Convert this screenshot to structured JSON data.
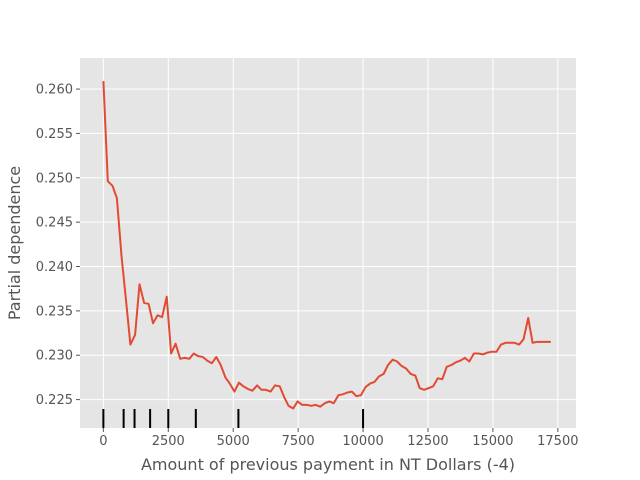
{
  "chart_data": {
    "type": "line",
    "title": "",
    "xlabel": "Amount of previous payment in NT Dollars (-4)",
    "ylabel": "Partial dependence",
    "xlim": [
      -900,
      18200
    ],
    "ylim": [
      0.2218,
      0.2635
    ],
    "grid": true,
    "xticks": [
      0,
      2500,
      5000,
      7500,
      10000,
      12500,
      15000,
      17500
    ],
    "xtick_labels": [
      "0",
      "2500",
      "5000",
      "7500",
      "10000",
      "12500",
      "15000",
      "17500"
    ],
    "yticks": [
      0.225,
      0.23,
      0.235,
      0.24,
      0.245,
      0.25,
      0.255,
      0.26
    ],
    "ytick_labels": [
      "0.225",
      "0.230",
      "0.235",
      "0.240",
      "0.245",
      "0.250",
      "0.255",
      "0.260"
    ],
    "series": [
      {
        "color": "#E24A33",
        "x": [
          0,
          170,
          350,
          520,
          700,
          870,
          1040,
          1220,
          1390,
          1570,
          1740,
          1910,
          2090,
          2260,
          2440,
          2610,
          2780,
          2960,
          3130,
          3310,
          3480,
          3650,
          3830,
          4000,
          4180,
          4350,
          4520,
          4700,
          4870,
          5050,
          5220,
          5390,
          5570,
          5740,
          5920,
          6090,
          6260,
          6440,
          6610,
          6790,
          6960,
          7130,
          7310,
          7480,
          7660,
          7830,
          8000,
          8180,
          8350,
          8530,
          8700,
          8870,
          9050,
          9220,
          9400,
          9570,
          9740,
          9920,
          10090,
          10270,
          10440,
          10610,
          10790,
          10960,
          11140,
          11310,
          11480,
          11660,
          11830,
          12010,
          12180,
          12350,
          12530,
          12700,
          12880,
          13050,
          13220,
          13400,
          13570,
          13750,
          13920,
          14090,
          14270,
          14440,
          14620,
          14790,
          14960,
          15140,
          15310,
          15490,
          15660,
          15830,
          16010,
          16180,
          16360,
          16530,
          16700,
          16880,
          17050,
          17230
        ],
        "y": [
          0.2609,
          0.2496,
          0.2491,
          0.2477,
          0.2412,
          0.2362,
          0.2312,
          0.2323,
          0.238,
          0.2359,
          0.2358,
          0.2336,
          0.2345,
          0.2343,
          0.2366,
          0.2302,
          0.2313,
          0.2296,
          0.2297,
          0.2296,
          0.2302,
          0.2299,
          0.2298,
          0.2294,
          0.2291,
          0.2298,
          0.2289,
          0.2275,
          0.2268,
          0.2259,
          0.2269,
          0.2265,
          0.2262,
          0.226,
          0.2266,
          0.2261,
          0.2261,
          0.2259,
          0.2266,
          0.2265,
          0.2253,
          0.2243,
          0.224,
          0.2248,
          0.2244,
          0.2244,
          0.2243,
          0.2244,
          0.2242,
          0.2246,
          0.2248,
          0.2246,
          0.2255,
          0.2256,
          0.2258,
          0.2259,
          0.2254,
          0.2255,
          0.2264,
          0.2268,
          0.227,
          0.2276,
          0.2279,
          0.2289,
          0.2295,
          0.2293,
          0.2288,
          0.2285,
          0.2279,
          0.2277,
          0.2263,
          0.2261,
          0.2263,
          0.2265,
          0.2274,
          0.2273,
          0.2287,
          0.2289,
          0.2292,
          0.2294,
          0.2297,
          0.2293,
          0.2302,
          0.2302,
          0.2301,
          0.2303,
          0.2304,
          0.2304,
          0.2312,
          0.2314,
          0.2314,
          0.2314,
          0.2312,
          0.2318,
          0.2342,
          0.2314,
          0.2315,
          0.2315,
          0.2315,
          0.2315
        ]
      }
    ],
    "rug_deciles": [
      0,
      780,
      1200,
      1800,
      2500,
      3560,
      5200,
      10000
    ]
  }
}
